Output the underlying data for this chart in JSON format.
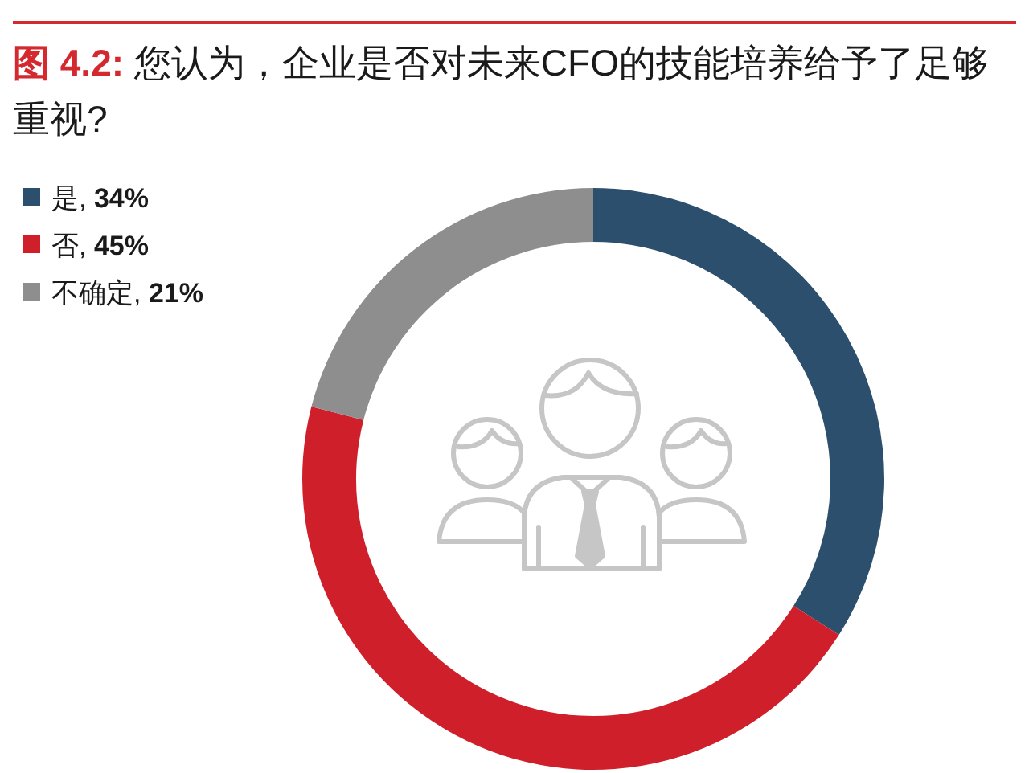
{
  "chart_data": {
    "type": "donut",
    "title": "图 4.2: 您认为，企业是否对未来CFO的技能培养给予了足够重视?",
    "categories": [
      "是, 34%",
      "否, 45%",
      "不确定, 21%"
    ],
    "values": [
      34,
      45,
      21
    ],
    "colors": [
      "#2c4f6d",
      "#cf1f2b",
      "#8e8e8e"
    ],
    "legend": "top left"
  }
}
